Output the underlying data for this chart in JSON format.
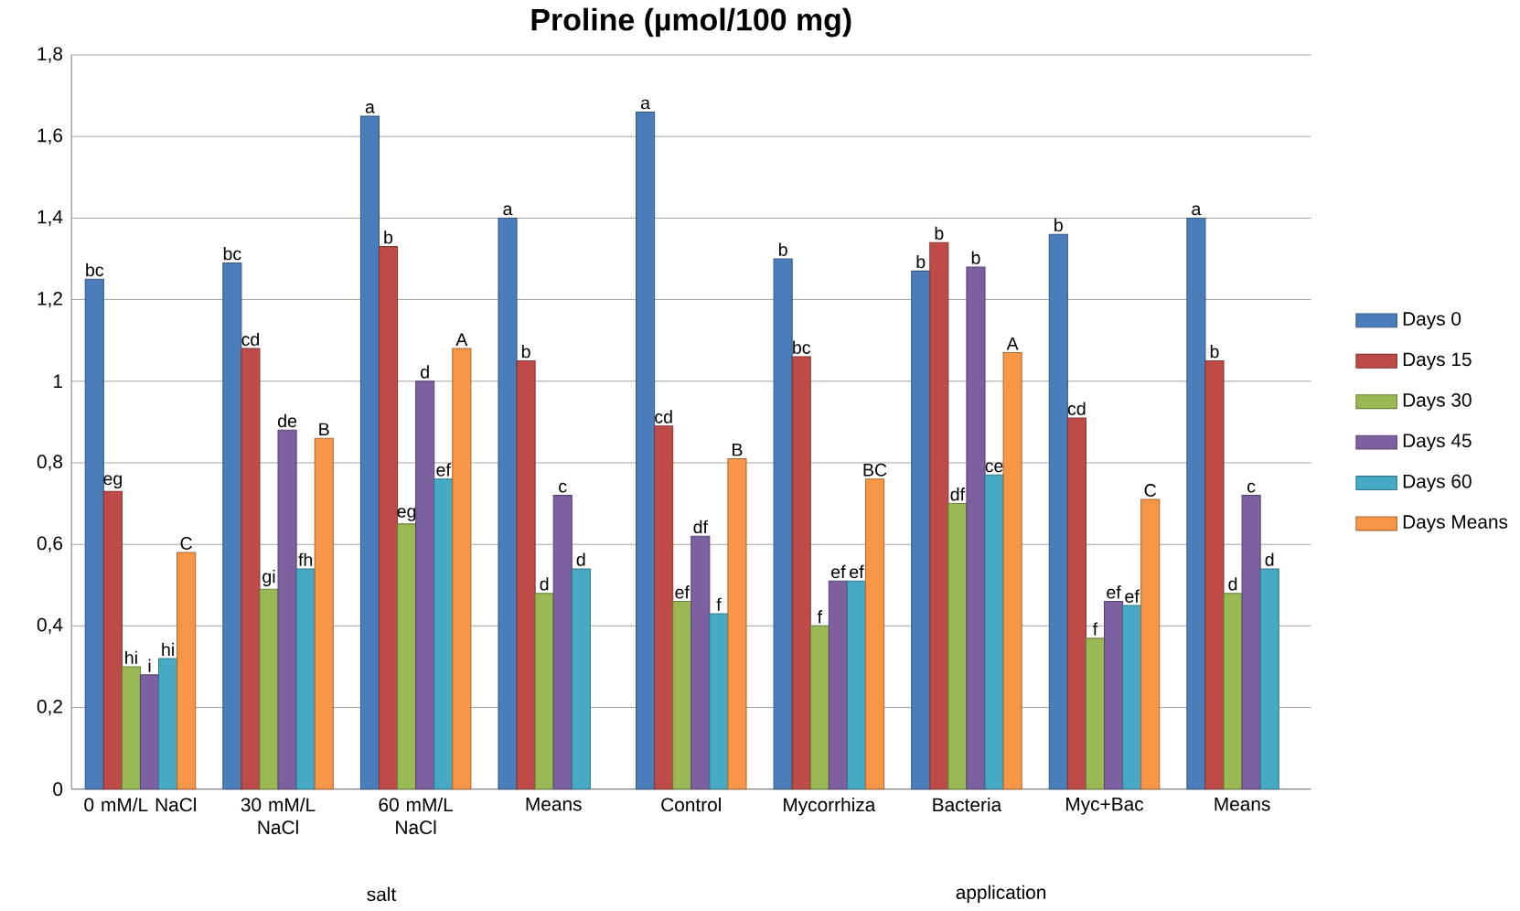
{
  "chart_data": {
    "type": "bar",
    "title": "Proline  (µmol/100 mg)",
    "categories": [
      "0 mM/L NaCl",
      "30 mM/L NaCl",
      "60 mM/L NaCl",
      "Means",
      "Control",
      "Mycorrhiza",
      "Bacteria",
      "Myc+Bac",
      "Means"
    ],
    "series": [
      {
        "name": "Days 0",
        "color": "#4a7ebb",
        "values": [
          1.25,
          1.29,
          1.65,
          1.4,
          1.66,
          1.3,
          1.27,
          1.36,
          1.4
        ],
        "value_labels": [
          "bc",
          "bc",
          "a",
          "a",
          "a",
          "b",
          "b",
          "b",
          "a"
        ]
      },
      {
        "name": "Days 15",
        "color": "#be4b48",
        "values": [
          0.73,
          1.08,
          1.33,
          1.05,
          0.89,
          1.06,
          1.34,
          0.91,
          1.05
        ],
        "value_labels": [
          "eg",
          "cd",
          "b",
          "b",
          "cd",
          "bc",
          "b",
          "cd",
          "b"
        ]
      },
      {
        "name": "Days 30",
        "color": "#98b954",
        "values": [
          0.3,
          0.49,
          0.65,
          0.48,
          0.46,
          0.4,
          0.7,
          0.37,
          0.48
        ],
        "value_labels": [
          "hi",
          "gi",
          "eg",
          "d",
          "ef",
          "f",
          "df",
          "f",
          "d"
        ]
      },
      {
        "name": "Days 45",
        "color": "#7d60a0",
        "values": [
          0.28,
          0.88,
          1.0,
          0.72,
          0.62,
          0.51,
          1.28,
          0.46,
          0.72
        ],
        "value_labels": [
          "i",
          "de",
          "d",
          "c",
          "df",
          "ef",
          "b",
          "ef",
          "c"
        ]
      },
      {
        "name": "Days 60",
        "color": "#46aac5",
        "values": [
          0.32,
          0.54,
          0.76,
          0.54,
          0.43,
          0.51,
          0.77,
          0.45,
          0.54
        ],
        "value_labels": [
          "hi",
          "fh",
          "ef",
          "d",
          "f",
          "ef",
          "ce",
          "ef",
          "d"
        ]
      },
      {
        "name": "Days Means",
        "color": "#f79646",
        "values": [
          0.58,
          0.86,
          1.08,
          null,
          0.81,
          0.76,
          1.07,
          0.71,
          null
        ],
        "value_labels": [
          "C",
          "B",
          "A",
          null,
          "B",
          "BC",
          "A",
          "C",
          null
        ]
      }
    ],
    "ylim": [
      0,
      1.8
    ],
    "yticks": [
      0,
      {
        "value": 0.2,
        "label": "0,2"
      },
      {
        "value": 0.4,
        "label": "0,4"
      },
      {
        "value": 0.6,
        "label": "0,6"
      },
      {
        "value": 0.8,
        "label": "0,8"
      },
      1,
      {
        "value": 1.2,
        "label": "1,2"
      },
      {
        "value": 1.4,
        "label": "1,4"
      },
      {
        "value": 1.6,
        "label": "1,6"
      },
      {
        "value": 1.8,
        "label": "1,8"
      }
    ],
    "grid": "y",
    "legend": "right",
    "annotations": [
      "salt",
      "application"
    ]
  }
}
